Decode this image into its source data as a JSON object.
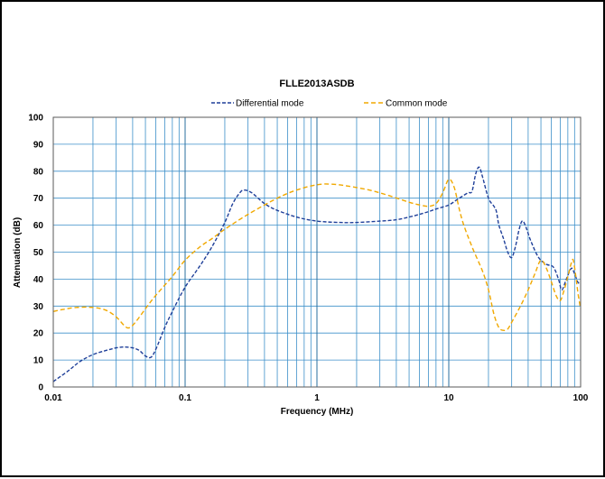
{
  "chart_data": {
    "type": "line",
    "title": "FLLE2013ASDB",
    "xlabel": "Frequency (MHz)",
    "ylabel": "Attenuation (dB)",
    "xscale": "log",
    "xlim": [
      0.01,
      100
    ],
    "ylim": [
      0,
      100
    ],
    "grid": true,
    "legend_position": "top",
    "x_tick_labels": [
      "0.01",
      "0.1",
      "1",
      "10",
      "100"
    ],
    "y_tick_labels": [
      "0",
      "10",
      "20",
      "30",
      "40",
      "50",
      "60",
      "70",
      "80",
      "90",
      "100"
    ],
    "series": [
      {
        "name": "Differential mode",
        "color": "#1f3f99",
        "dash": "dashed",
        "points": [
          [
            0.01,
            2
          ],
          [
            0.013,
            6
          ],
          [
            0.016,
            9.5
          ],
          [
            0.02,
            12
          ],
          [
            0.025,
            13.5
          ],
          [
            0.03,
            14.5
          ],
          [
            0.035,
            14.8
          ],
          [
            0.04,
            14.5
          ],
          [
            0.045,
            13.5
          ],
          [
            0.05,
            11.5
          ],
          [
            0.055,
            11
          ],
          [
            0.06,
            14
          ],
          [
            0.07,
            22
          ],
          [
            0.08,
            28
          ],
          [
            0.1,
            37
          ],
          [
            0.13,
            45
          ],
          [
            0.16,
            52
          ],
          [
            0.2,
            61
          ],
          [
            0.23,
            68
          ],
          [
            0.26,
            72
          ],
          [
            0.28,
            73
          ],
          [
            0.32,
            72
          ],
          [
            0.4,
            68
          ],
          [
            0.5,
            65.5
          ],
          [
            0.7,
            63
          ],
          [
            1,
            61.5
          ],
          [
            1.5,
            61
          ],
          [
            2,
            61
          ],
          [
            3,
            61.5
          ],
          [
            4,
            62
          ],
          [
            5,
            63
          ],
          [
            6,
            64
          ],
          [
            7,
            65
          ],
          [
            8,
            66
          ],
          [
            10,
            67.5
          ],
          [
            12,
            70
          ],
          [
            14,
            72
          ],
          [
            15,
            72.5
          ],
          [
            16,
            79
          ],
          [
            17,
            81.5
          ],
          [
            18,
            78
          ],
          [
            20,
            70
          ],
          [
            22,
            67
          ],
          [
            23,
            65
          ],
          [
            24,
            60
          ],
          [
            26,
            55
          ],
          [
            28,
            50
          ],
          [
            30,
            48
          ],
          [
            32,
            52
          ],
          [
            34,
            58
          ],
          [
            36,
            61.5
          ],
          [
            38,
            60
          ],
          [
            42,
            54
          ],
          [
            48,
            48
          ],
          [
            55,
            45.5
          ],
          [
            62,
            44.5
          ],
          [
            68,
            40
          ],
          [
            72,
            36
          ],
          [
            78,
            40
          ],
          [
            85,
            44
          ],
          [
            90,
            42
          ],
          [
            95,
            39
          ],
          [
            100,
            38
          ]
        ]
      },
      {
        "name": "Common mode",
        "color": "#f0a800",
        "dash": "dashed",
        "points": [
          [
            0.01,
            28
          ],
          [
            0.012,
            28.8
          ],
          [
            0.015,
            29.5
          ],
          [
            0.02,
            29.5
          ],
          [
            0.025,
            28.5
          ],
          [
            0.03,
            26
          ],
          [
            0.035,
            22.5
          ],
          [
            0.038,
            22
          ],
          [
            0.042,
            24
          ],
          [
            0.05,
            29
          ],
          [
            0.06,
            34
          ],
          [
            0.08,
            41
          ],
          [
            0.1,
            47
          ],
          [
            0.13,
            52
          ],
          [
            0.16,
            55
          ],
          [
            0.2,
            58.5
          ],
          [
            0.3,
            64
          ],
          [
            0.5,
            70
          ],
          [
            0.7,
            73
          ],
          [
            1,
            75
          ],
          [
            1.3,
            75.2
          ],
          [
            1.7,
            74.5
          ],
          [
            2.5,
            73
          ],
          [
            3.5,
            71
          ],
          [
            5,
            68.5
          ],
          [
            6,
            67.5
          ],
          [
            7,
            67
          ],
          [
            8,
            68
          ],
          [
            9,
            72
          ],
          [
            10,
            77
          ],
          [
            11,
            74
          ],
          [
            12,
            66
          ],
          [
            13,
            60
          ],
          [
            15,
            52
          ],
          [
            18,
            43
          ],
          [
            20,
            36
          ],
          [
            22,
            27
          ],
          [
            24,
            22
          ],
          [
            26,
            21
          ],
          [
            28,
            21.5
          ],
          [
            30,
            24
          ],
          [
            35,
            30
          ],
          [
            40,
            36
          ],
          [
            45,
            42
          ],
          [
            50,
            47
          ],
          [
            55,
            44
          ],
          [
            60,
            39
          ],
          [
            65,
            34
          ],
          [
            70,
            32
          ],
          [
            75,
            36
          ],
          [
            80,
            41
          ],
          [
            85,
            46
          ],
          [
            88,
            47
          ],
          [
            92,
            41
          ],
          [
            96,
            34
          ],
          [
            100,
            29
          ]
        ]
      }
    ]
  }
}
